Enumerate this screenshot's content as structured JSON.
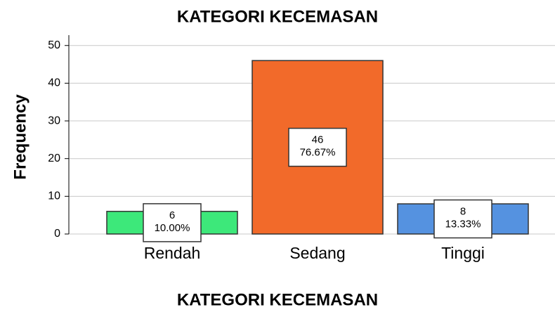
{
  "chart_data": {
    "type": "bar",
    "title": "KATEGORI KECEMASAN",
    "x_label": "KATEGORI KECEMASAN",
    "y_label": "Frequency",
    "categories": [
      "Rendah",
      "Sedang",
      "Tinggi"
    ],
    "values": [
      6,
      46,
      8
    ],
    "percentages": [
      10,
      76.67,
      13.33
    ],
    "percentage_labels": [
      "10.00%",
      "76.67%",
      "13.33%"
    ],
    "colors": [
      "#3de87a",
      "#f26a2a",
      "#5592e0"
    ],
    "ylim": [
      0,
      52
    ],
    "yticks": [
      0,
      10,
      20,
      30,
      40,
      50
    ],
    "grid": true
  }
}
